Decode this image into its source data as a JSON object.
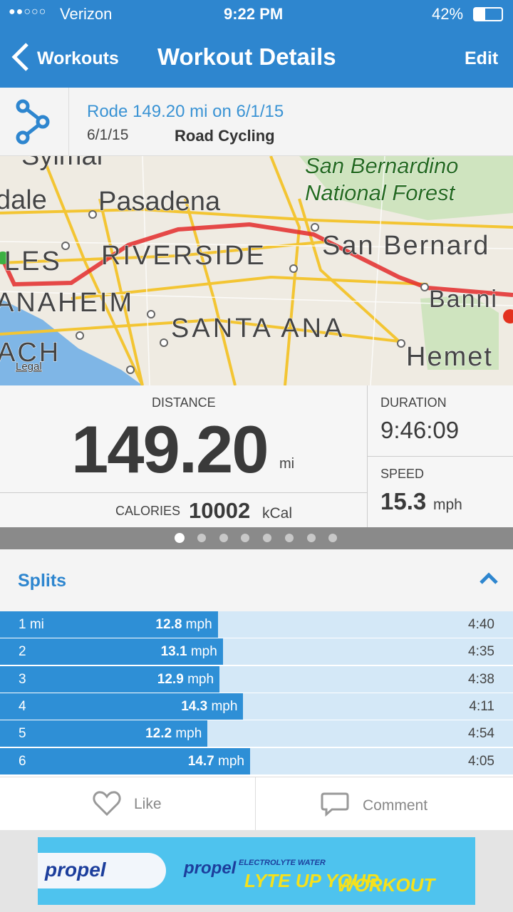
{
  "status_bar": {
    "carrier": "Verizon",
    "time": "9:22 PM",
    "battery": "42%"
  },
  "nav": {
    "back": "Workouts",
    "title": "Workout Details",
    "action": "Edit"
  },
  "workout": {
    "title": "Rode 149.20 mi on 6/1/15",
    "date": "6/1/15",
    "activity": "Road Cycling"
  },
  "map": {
    "labels": [
      "Sylmar",
      "dale",
      "Pasadena",
      "San Bernardino",
      "National Forest",
      "LES",
      "RIVERSIDE",
      "San Bernard",
      "ANAHEIM",
      "SANTA ANA",
      "Banni",
      "ACH",
      "Hemet",
      "Legal"
    ]
  },
  "stats": {
    "distance_label": "DISTANCE",
    "distance": "149.20",
    "distance_unit": "mi",
    "calories_label": "CALORIES",
    "calories": "10002",
    "calories_unit": "kCal",
    "duration_label": "DURATION",
    "duration": "9:46:09",
    "speed_label": "SPEED",
    "speed": "15.3",
    "speed_unit": "mph"
  },
  "splits": {
    "title": "Splits",
    "unit": "mph",
    "rows": [
      {
        "label": "1 mi",
        "speed": 12.8,
        "time": "4:40"
      },
      {
        "label": "2",
        "speed": 13.1,
        "time": "4:35"
      },
      {
        "label": "3",
        "speed": 12.9,
        "time": "4:38"
      },
      {
        "label": "4",
        "speed": 14.3,
        "time": "4:11"
      },
      {
        "label": "5",
        "speed": 12.2,
        "time": "4:54"
      },
      {
        "label": "6",
        "speed": 14.7,
        "time": "4:05"
      }
    ]
  },
  "actions": {
    "like": "Like",
    "comment": "Comment"
  },
  "ad": {
    "brand": "propel",
    "brand2": "propel",
    "tagline": "ELECTROLYTE WATER",
    "slogan1": "LYTE UP YOUR",
    "slogan2": "WORKOUT"
  }
}
